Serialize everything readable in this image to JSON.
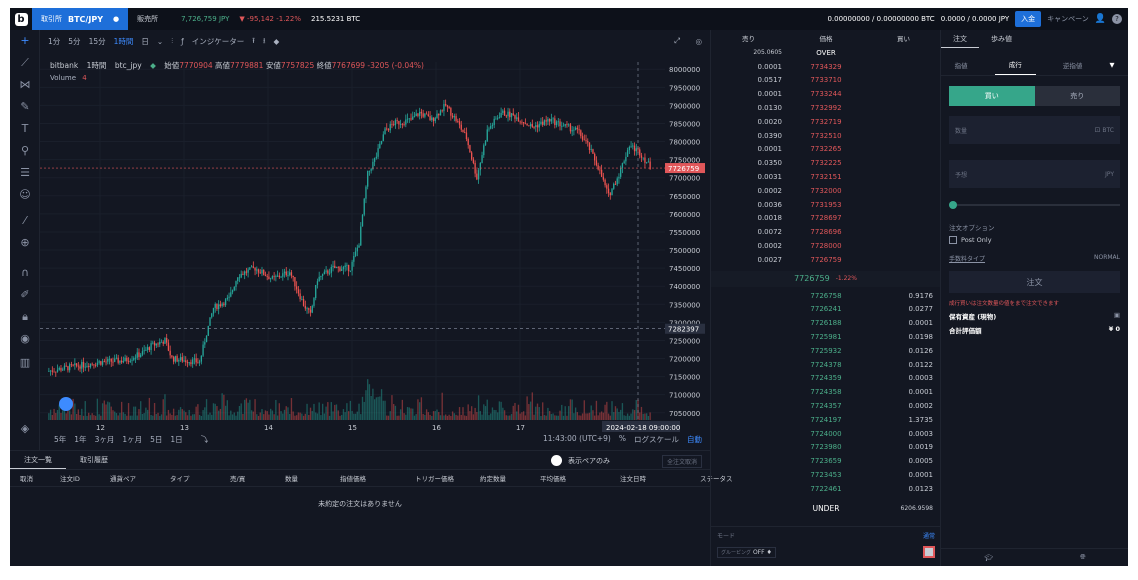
{
  "topbar": {
    "logo": "b",
    "exchange_tab": "取引所",
    "pair": "BTC/JPY",
    "sales_tab": "販売所",
    "price": "7,726,759 JPY",
    "change": "▼ -95,142 -1.22%",
    "volume": "215.5231 BTC",
    "balance_btc": "0.00000000 / 0.00000000 BTC",
    "balance_jpy": "0.0000 / 0.0000 JPY",
    "deposit_button": "入金",
    "campaign": "キャンペーン"
  },
  "chart_toolbar": {
    "intervals": [
      "1分",
      "5分",
      "15分",
      "1時間",
      "日"
    ],
    "selected": "1時間",
    "indicator": "インジケーター"
  },
  "chart_legend": {
    "exchange": "bitbank",
    "interval": "1時間",
    "symbol": "btc_jpy",
    "open_label": "始値",
    "open": "7770904",
    "high_label": "高値",
    "high": "7779881",
    "low_label": "安値",
    "low": "7757825",
    "close_label": "終値",
    "close": "7767699",
    "delta": "-3205 (-0.04%)",
    "volume_label": "Volume",
    "volume_value": "4"
  },
  "chart_bottom": {
    "ranges": [
      "5年",
      "1年",
      "3ヶ月",
      "1ヶ月",
      "5日",
      "1日"
    ],
    "time": "11:43:00 (UTC+9)",
    "percent": "%",
    "log": "ログスケール",
    "auto": "自動"
  },
  "chart_data": {
    "type": "candlestick",
    "y_ticks": [
      8000000,
      7950000,
      7900000,
      7850000,
      7800000,
      7750000,
      7700000,
      7650000,
      7600000,
      7550000,
      7500000,
      7450000,
      7400000,
      7350000,
      7300000,
      7250000,
      7200000,
      7150000,
      7100000,
      7050000
    ],
    "x_ticks": [
      "12",
      "13",
      "14",
      "15",
      "16",
      "17"
    ],
    "current_price_label": "7726759",
    "crosshair_price_label": "7282397",
    "crosshair_time_label": "2024-02-18  09:00:00",
    "ylim": [
      7030000,
      8020000
    ],
    "up_color": "#26a69a",
    "down_color": "#ef5350"
  },
  "orders_panel": {
    "tabs": [
      "注文一覧",
      "取引履歴"
    ],
    "show_pair_only": "表示ペアのみ",
    "cancel_all": "全注文取消",
    "columns": [
      "取消",
      "注文ID",
      "通貨ペア",
      "タイプ",
      "売/買",
      "数量",
      "指値価格",
      "トリガー価格",
      "約定数量",
      "平均価格",
      "注文日時",
      "ステータス"
    ],
    "empty": "未約定の注文はありません"
  },
  "orderbook": {
    "headers": [
      "売り",
      "価格",
      "買い"
    ],
    "over_qty": "205.0605",
    "over_label": "OVER",
    "asks": [
      {
        "qty": "0.0001",
        "price": "7734329"
      },
      {
        "qty": "0.0517",
        "price": "7733710"
      },
      {
        "qty": "0.0001",
        "price": "7733244"
      },
      {
        "qty": "0.0130",
        "price": "7732992"
      },
      {
        "qty": "0.0020",
        "price": "7732719"
      },
      {
        "qty": "0.0390",
        "price": "7732510"
      },
      {
        "qty": "0.0001",
        "price": "7732265"
      },
      {
        "qty": "0.0350",
        "price": "7732225"
      },
      {
        "qty": "0.0031",
        "price": "7732151"
      },
      {
        "qty": "0.0002",
        "price": "7732000"
      },
      {
        "qty": "0.0036",
        "price": "7731953"
      },
      {
        "qty": "0.0018",
        "price": "7728697"
      },
      {
        "qty": "0.0072",
        "price": "7728696"
      },
      {
        "qty": "0.0002",
        "price": "7728000"
      },
      {
        "qty": "0.0027",
        "price": "7726759"
      }
    ],
    "mid_price": "7726759",
    "mid_change": "-1.22%",
    "bids": [
      {
        "price": "7726758",
        "qty": "0.9176"
      },
      {
        "price": "7726241",
        "qty": "0.0277"
      },
      {
        "price": "7726188",
        "qty": "0.0001"
      },
      {
        "price": "7725981",
        "qty": "0.0198"
      },
      {
        "price": "7725932",
        "qty": "0.0126"
      },
      {
        "price": "7724378",
        "qty": "0.0122"
      },
      {
        "price": "7724359",
        "qty": "0.0003"
      },
      {
        "price": "7724358",
        "qty": "0.0001"
      },
      {
        "price": "7724357",
        "qty": "0.0002"
      },
      {
        "price": "7724197",
        "qty": "1.3735"
      },
      {
        "price": "7724000",
        "qty": "0.0003"
      },
      {
        "price": "7723980",
        "qty": "0.0019"
      },
      {
        "price": "7723659",
        "qty": "0.0005"
      },
      {
        "price": "7723453",
        "qty": "0.0001"
      },
      {
        "price": "7722461",
        "qty": "0.0123"
      }
    ],
    "under_label": "UNDER",
    "under_qty": "6206.9598",
    "mode_label": "モード",
    "mode_value": "通常",
    "group_label": "グルーピング",
    "group_value": "OFF ♦"
  },
  "trade_panel": {
    "tabs": [
      "注文",
      "歩み値"
    ],
    "order_types": [
      "指値",
      "成行",
      "逆指値"
    ],
    "selected_type": "成行",
    "buy": "買い",
    "sell": "売り",
    "qty_label": "数量",
    "qty_unit": "BTC",
    "est_label": "予想",
    "est_unit": "JPY",
    "option_label": "注文オプション",
    "post_only": "Post Only",
    "exec_type_label": "手数料タイプ",
    "exec_type_value": "NORMAL",
    "submit": "注文",
    "warning": "成行買いは注文数量の値をまで注文できます",
    "holding_label": "保有資産 (現物)",
    "total_label": "合計評価額",
    "total_value": "¥ 0"
  }
}
